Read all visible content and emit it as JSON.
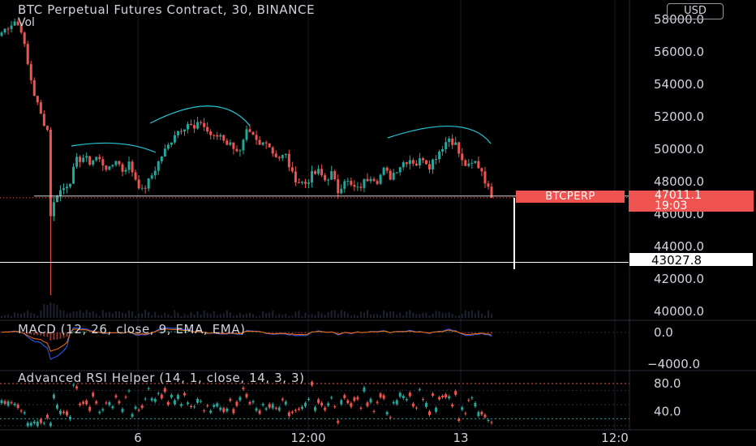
{
  "header": {
    "title": "BTC Perpetual Futures Contract, 30, BINANCE",
    "volume_label": "Vol",
    "currency_button": "USD"
  },
  "indicators": {
    "macd_title": "MACD (12, 26, close, 9, EMA, EMA)",
    "rsi_title": "Advanced RSI Helper (14, 1, close, 14, 3, 3)"
  },
  "price_tag": {
    "symbol": "BTCPERP",
    "price": "47011.1",
    "countdown": "19:03"
  },
  "horizontal_line_label": "43027.8",
  "colors": {
    "background": "#000000",
    "up": "#26a69a",
    "down": "#ef5350",
    "trendline": "#26c6da",
    "macd_line": "#2962ff",
    "signal_line": "#ff6d00",
    "rsi_line": "#7e57c2"
  },
  "chart_data": [
    {
      "type": "candlestick",
      "title": "BTC Perpetual Futures Contract, 30, BINANCE",
      "y_axis_ticks": [
        "58000.0",
        "56000.0",
        "54000.0",
        "52000.0",
        "50000.0",
        "48000.0",
        "46000.0",
        "44000.0",
        "42000.0",
        "40000.0"
      ],
      "x_axis_ticks": [
        "6",
        "12:00",
        "13",
        "12:0"
      ],
      "ylim": [
        39600,
        58600
      ],
      "last_price": 47011.1,
      "horizontal_line": 43027.8,
      "price_path": [
        [
          0,
          57200
        ],
        [
          2,
          57600
        ],
        [
          4,
          57900
        ],
        [
          6,
          57400
        ],
        [
          8,
          55200
        ],
        [
          10,
          53400
        ],
        [
          12,
          52100
        ],
        [
          14,
          51200
        ],
        [
          15,
          46000
        ],
        [
          17,
          47300
        ],
        [
          19,
          47600
        ],
        [
          21,
          48100
        ],
        [
          23,
          49300
        ],
        [
          25,
          49500
        ],
        [
          27,
          49200
        ],
        [
          29,
          49500
        ],
        [
          31,
          49100
        ],
        [
          33,
          48700
        ],
        [
          35,
          49400
        ],
        [
          37,
          48700
        ],
        [
          39,
          49100
        ],
        [
          41,
          48200
        ],
        [
          43,
          47400
        ],
        [
          45,
          48000
        ],
        [
          47,
          48800
        ],
        [
          49,
          49600
        ],
        [
          51,
          50200
        ],
        [
          53,
          51000
        ],
        [
          55,
          51300
        ],
        [
          57,
          51600
        ],
        [
          59,
          51200
        ],
        [
          61,
          51700
        ],
        [
          63,
          51100
        ],
        [
          65,
          50700
        ],
        [
          67,
          50900
        ],
        [
          69,
          50400
        ],
        [
          71,
          50200
        ],
        [
          73,
          49800
        ],
        [
          75,
          51000
        ],
        [
          77,
          50700
        ],
        [
          79,
          50200
        ],
        [
          81,
          50600
        ],
        [
          83,
          49800
        ],
        [
          85,
          49500
        ],
        [
          87,
          49600
        ],
        [
          89,
          48400
        ],
        [
          91,
          48000
        ],
        [
          93,
          47900
        ],
        [
          95,
          48400
        ],
        [
          97,
          48600
        ],
        [
          99,
          48100
        ],
        [
          101,
          48500
        ],
        [
          103,
          47400
        ],
        [
          105,
          48200
        ],
        [
          107,
          47700
        ],
        [
          109,
          47500
        ],
        [
          111,
          48000
        ],
        [
          113,
          48400
        ],
        [
          115,
          48100
        ],
        [
          117,
          48700
        ],
        [
          119,
          48300
        ],
        [
          121,
          48800
        ],
        [
          123,
          49200
        ],
        [
          125,
          49400
        ],
        [
          127,
          49100
        ],
        [
          129,
          49500
        ],
        [
          131,
          49000
        ],
        [
          133,
          49600
        ],
        [
          135,
          50200
        ],
        [
          137,
          50700
        ],
        [
          139,
          50300
        ],
        [
          141,
          49200
        ],
        [
          143,
          48900
        ],
        [
          145,
          49200
        ],
        [
          147,
          48700
        ],
        [
          149,
          47500
        ],
        [
          150,
          47011.1
        ]
      ],
      "annotations": [
        "three curved trend arcs above price"
      ]
    },
    {
      "type": "line",
      "title": "MACD (12, 26, close, 9, EMA, EMA)",
      "y_axis_ticks": [
        "0.0",
        "−4000.0"
      ],
      "ylim": [
        -4600,
        1000
      ]
    },
    {
      "type": "line",
      "title": "Advanced RSI Helper (14, 1, close, 14, 3, 3)",
      "y_axis_ticks": [
        "80.0",
        "40.0"
      ],
      "ylim": [
        20,
        95
      ]
    }
  ]
}
